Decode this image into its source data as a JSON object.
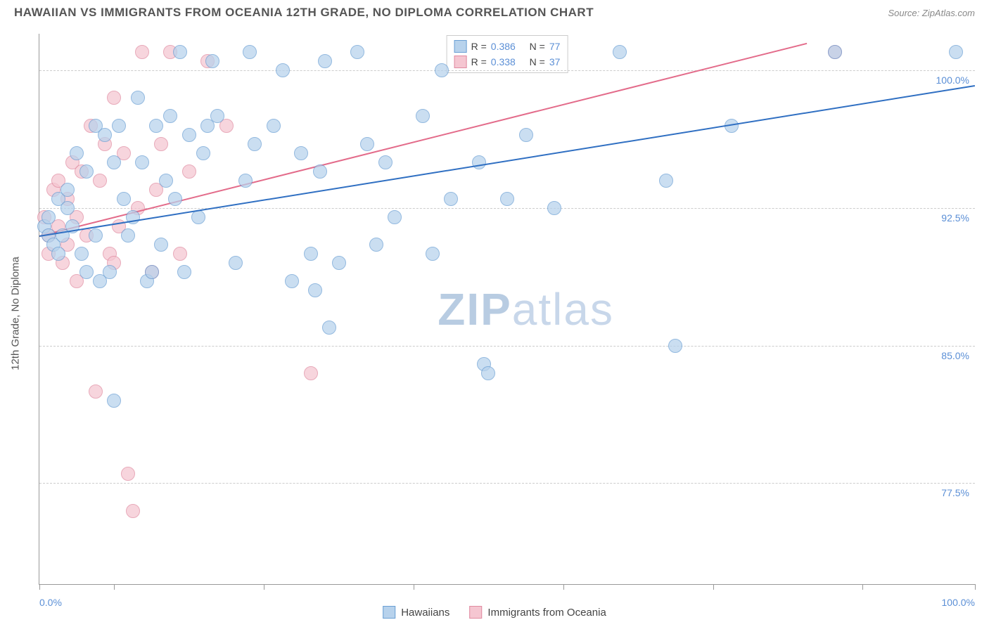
{
  "title": "HAWAIIAN VS IMMIGRANTS FROM OCEANIA 12TH GRADE, NO DIPLOMA CORRELATION CHART",
  "source": "Source: ZipAtlas.com",
  "y_axis_title": "12th Grade, No Diploma",
  "watermark_bold": "ZIP",
  "watermark_light": "atlas",
  "xlim": [
    0,
    100
  ],
  "ylim": [
    72,
    102
  ],
  "xlabel_min": "0.0%",
  "xlabel_max": "100.0%",
  "xtick_positions": [
    0,
    8,
    24,
    40,
    56,
    72,
    88,
    100
  ],
  "yticks": [
    {
      "v": 100.0,
      "label": "100.0%"
    },
    {
      "v": 92.5,
      "label": "92.5%"
    },
    {
      "v": 85.0,
      "label": "85.0%"
    },
    {
      "v": 77.5,
      "label": "77.5%"
    }
  ],
  "series": {
    "hawaiians": {
      "label": "Hawaiians",
      "fill": "#b7d2ec",
      "stroke": "#6a9fd4",
      "line_color": "#2f6fc2",
      "marker_r": 10,
      "R": "0.386",
      "N": "77",
      "trend": {
        "x1": 0,
        "y1": 91.0,
        "x2": 100,
        "y2": 99.2
      },
      "points": [
        [
          0.5,
          91.5
        ],
        [
          1,
          92
        ],
        [
          1,
          91
        ],
        [
          1.5,
          90.5
        ],
        [
          2,
          93
        ],
        [
          2,
          90
        ],
        [
          2.5,
          91
        ],
        [
          3,
          92.5
        ],
        [
          3,
          93.5
        ],
        [
          3.5,
          91.5
        ],
        [
          4,
          95.5
        ],
        [
          4.5,
          90
        ],
        [
          5,
          94.5
        ],
        [
          5,
          89
        ],
        [
          6,
          91
        ],
        [
          6,
          97
        ],
        [
          6.5,
          88.5
        ],
        [
          7,
          96.5
        ],
        [
          7.5,
          89
        ],
        [
          8,
          82
        ],
        [
          8,
          95
        ],
        [
          8.5,
          97
        ],
        [
          9,
          93
        ],
        [
          9.5,
          91
        ],
        [
          10,
          92
        ],
        [
          10.5,
          98.5
        ],
        [
          11,
          95
        ],
        [
          11.5,
          88.5
        ],
        [
          12,
          89
        ],
        [
          12.5,
          97
        ],
        [
          13,
          90.5
        ],
        [
          13.5,
          94
        ],
        [
          14,
          97.5
        ],
        [
          14.5,
          93
        ],
        [
          15,
          101
        ],
        [
          15.5,
          89
        ],
        [
          16,
          96.5
        ],
        [
          17,
          92
        ],
        [
          17.5,
          95.5
        ],
        [
          18,
          97
        ],
        [
          18.5,
          100.5
        ],
        [
          19,
          97.5
        ],
        [
          21,
          89.5
        ],
        [
          22,
          94
        ],
        [
          22.5,
          101
        ],
        [
          23,
          96
        ],
        [
          25,
          97
        ],
        [
          26,
          100
        ],
        [
          27,
          88.5
        ],
        [
          28,
          95.5
        ],
        [
          29,
          90
        ],
        [
          29.5,
          88
        ],
        [
          30,
          94.5
        ],
        [
          30.5,
          100.5
        ],
        [
          31,
          86
        ],
        [
          32,
          89.5
        ],
        [
          34,
          101
        ],
        [
          35,
          96
        ],
        [
          36,
          90.5
        ],
        [
          37,
          95
        ],
        [
          38,
          92
        ],
        [
          41,
          97.5
        ],
        [
          42,
          90
        ],
        [
          43,
          100
        ],
        [
          44,
          93
        ],
        [
          47,
          95
        ],
        [
          47.5,
          84
        ],
        [
          48,
          83.5
        ],
        [
          50,
          93
        ],
        [
          52,
          96.5
        ],
        [
          55,
          92.5
        ],
        [
          62,
          101
        ],
        [
          67,
          94
        ],
        [
          68,
          85
        ],
        [
          74,
          97
        ],
        [
          85,
          101
        ],
        [
          98,
          101
        ]
      ]
    },
    "oceania": {
      "label": "Immigrants from Oceania",
      "fill": "#f5c6d1",
      "stroke": "#e08aa0",
      "line_color": "#e36b8a",
      "marker_r": 10,
      "R": "0.338",
      "N": "37",
      "trend": {
        "x1": 0,
        "y1": 91.0,
        "x2": 82,
        "y2": 101.5
      },
      "points": [
        [
          0.5,
          92
        ],
        [
          1,
          91
        ],
        [
          1,
          90
        ],
        [
          1.5,
          93.5
        ],
        [
          2,
          94
        ],
        [
          2,
          91.5
        ],
        [
          2.5,
          89.5
        ],
        [
          3,
          93
        ],
        [
          3,
          90.5
        ],
        [
          3.5,
          95
        ],
        [
          4,
          92
        ],
        [
          4,
          88.5
        ],
        [
          4.5,
          94.5
        ],
        [
          5,
          91
        ],
        [
          5.5,
          97
        ],
        [
          6,
          82.5
        ],
        [
          6.5,
          94
        ],
        [
          7,
          96
        ],
        [
          7.5,
          90
        ],
        [
          8,
          89.5
        ],
        [
          8,
          98.5
        ],
        [
          8.5,
          91.5
        ],
        [
          9,
          95.5
        ],
        [
          9.5,
          78
        ],
        [
          10,
          76
        ],
        [
          10.5,
          92.5
        ],
        [
          11,
          101
        ],
        [
          12,
          89
        ],
        [
          12.5,
          93.5
        ],
        [
          13,
          96
        ],
        [
          14,
          101
        ],
        [
          15,
          90
        ],
        [
          16,
          94.5
        ],
        [
          18,
          100.5
        ],
        [
          20,
          97
        ],
        [
          29,
          83.5
        ],
        [
          85,
          101
        ]
      ]
    }
  },
  "legend_top_layout": {
    "R_label": "R =",
    "N_label": "N ="
  },
  "colors": {
    "text_title": "#555555",
    "text_axis": "#5b8fd6",
    "grid": "#cccccc"
  }
}
